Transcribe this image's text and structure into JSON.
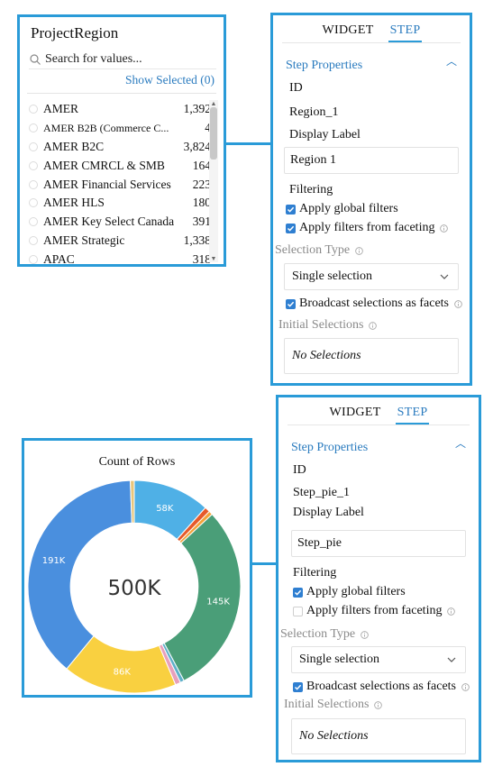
{
  "list_widget": {
    "title": "ProjectRegion",
    "search_placeholder": "Search for values...",
    "show_selected": "Show Selected (0)",
    "items": [
      {
        "label": "AMER",
        "count": "1,392"
      },
      {
        "label": "AMER B2B (Commerce C...",
        "count": "4"
      },
      {
        "label": "AMER B2C",
        "count": "3,824"
      },
      {
        "label": "AMER CMRCL & SMB",
        "count": "164"
      },
      {
        "label": "AMER Financial Services",
        "count": "223"
      },
      {
        "label": "AMER HLS",
        "count": "180"
      },
      {
        "label": "AMER Key Select Canada",
        "count": "391"
      },
      {
        "label": "AMER Strategic",
        "count": "1,338"
      },
      {
        "label": "APAC",
        "count": "318"
      }
    ]
  },
  "panel_top": {
    "tab_widget": "WIDGET",
    "tab_step": "STEP",
    "step_properties": "Step Properties",
    "id_label": "ID",
    "id_value": "Region_1",
    "display_label": "Display Label",
    "display_value": "Region 1",
    "filtering": "Filtering",
    "apply_global": "Apply global filters",
    "apply_global_checked": true,
    "apply_faceting": "Apply filters from faceting",
    "apply_faceting_checked": true,
    "selection_type_label": "Selection Type",
    "selection_type_value": "Single selection",
    "broadcast": "Broadcast selections as facets",
    "broadcast_checked": true,
    "initial_selections_label": "Initial Selections",
    "initial_selections_value": "No Selections"
  },
  "panel_bottom": {
    "tab_widget": "WIDGET",
    "tab_step": "STEP",
    "step_properties": "Step Properties",
    "id_label": "ID",
    "id_value": "Step_pie_1",
    "display_label": "Display Label",
    "display_value": "Step_pie",
    "filtering": "Filtering",
    "apply_global": "Apply global filters",
    "apply_global_checked": true,
    "apply_faceting": "Apply filters from faceting",
    "apply_faceting_checked": false,
    "selection_type_label": "Selection Type",
    "selection_type_value": "Single selection",
    "broadcast": "Broadcast selections as facets",
    "broadcast_checked": true,
    "initial_selections_label": "Initial Selections",
    "initial_selections_value": "No Selections"
  },
  "colors": {
    "frame": "#2a9bd8",
    "accent": "#2a7bbf",
    "checkbox": "#2f7fd1"
  },
  "chart_data": {
    "type": "pie",
    "title": "Count of Rows",
    "center_label": "500K",
    "inner_radius_ratio": 0.6,
    "slices": [
      {
        "label": "58K",
        "value": 58,
        "color": "#4fb0e6",
        "show_label": true
      },
      {
        "label": "",
        "value": 4,
        "color": "#e65a2b",
        "show_label": false
      },
      {
        "label": "",
        "value": 3,
        "color": "#f4a33a",
        "show_label": false
      },
      {
        "label": "145K",
        "value": 145,
        "color": "#4a9e78",
        "show_label": true
      },
      {
        "label": "",
        "value": 3,
        "color": "#5fb0c9",
        "show_label": false
      },
      {
        "label": "",
        "value": 4,
        "color": "#e8a0bb",
        "show_label": false
      },
      {
        "label": "86K",
        "value": 86,
        "color": "#f9d040",
        "show_label": true
      },
      {
        "label": "191K",
        "value": 191,
        "color": "#4a8fde",
        "show_label": true
      },
      {
        "label": "",
        "value": 3,
        "color": "#e9c67a",
        "show_label": false
      }
    ]
  }
}
